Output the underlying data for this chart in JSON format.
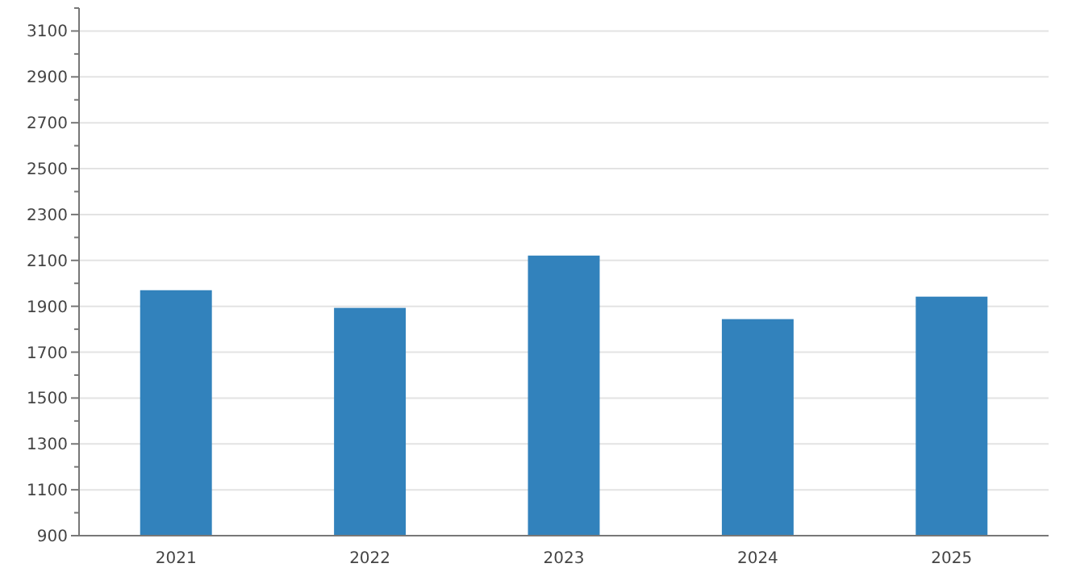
{
  "chart_data": {
    "type": "bar",
    "categories": [
      "2021",
      "2022",
      "2023",
      "2024",
      "2025"
    ],
    "values": [
      1970,
      1893,
      2121,
      1844,
      1942
    ],
    "color": "#3282bc",
    "ylim": [
      900,
      3200
    ],
    "yticks": [
      900,
      {
        "value": 1000,
        "label": null
      },
      1100,
      {
        "value": 1200,
        "label": null
      },
      1300,
      {
        "value": 1400,
        "label": null
      },
      1500,
      {
        "value": 1600,
        "label": null
      },
      1700,
      {
        "value": 1800,
        "label": null
      },
      1900,
      {
        "value": 2000,
        "label": null
      },
      2100,
      {
        "value": 2200,
        "label": null
      },
      2300,
      {
        "value": 2400,
        "label": null
      },
      2500,
      {
        "value": 2600,
        "label": null
      },
      2700,
      {
        "value": 2800,
        "label": null
      },
      2900,
      {
        "value": 3000,
        "label": null
      },
      3100,
      {
        "value": 3200,
        "label": null
      }
    ],
    "grid": "y"
  }
}
